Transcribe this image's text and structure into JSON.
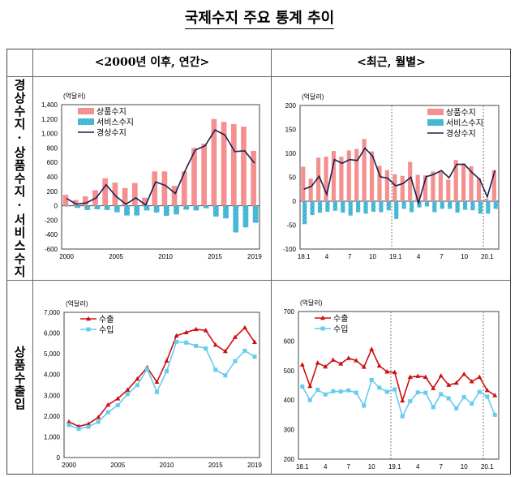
{
  "title": "국제수지 주요 통계 추이",
  "columns": [
    "<2000년 이후, 연간>",
    "<최근, 월별>"
  ],
  "rows": [
    "경상수지·상품수지·서비스수지",
    "상품수출입"
  ],
  "colors": {
    "goods": "#f4908f",
    "services": "#4fc3e0",
    "current": "#1a1f4e",
    "exports": "#cc1010",
    "imports": "#66ccee"
  },
  "chart_data": [
    {
      "type": "bar+line",
      "unit": "(억달러)",
      "categories": [
        "2000",
        "2001",
        "2002",
        "2003",
        "2004",
        "2005",
        "2006",
        "2007",
        "2008",
        "2009",
        "2010",
        "2011",
        "2012",
        "2013",
        "2014",
        "2015",
        "2016",
        "2017",
        "2018",
        "2019"
      ],
      "tick_labels": [
        "2000",
        "2005",
        "2010",
        "2015",
        "2019"
      ],
      "tick_index": [
        0,
        5,
        10,
        15,
        19
      ],
      "ylim": [
        -600,
        1400
      ],
      "yticks": [
        "1,400",
        "1,200",
        "1,000",
        "800",
        "600",
        "400",
        "200",
        "0",
        "-200",
        "-400",
        "-600"
      ],
      "legend": "top-left",
      "series": [
        {
          "name": "상품수지",
          "kind": "bar",
          "values": [
            150,
            80,
            130,
            215,
            380,
            320,
            245,
            315,
            110,
            475,
            475,
            275,
            475,
            800,
            860,
            1200,
            1160,
            1130,
            1095,
            760
          ]
        },
        {
          "name": "서비스수지",
          "kind": "hatched-bar",
          "values": [
            -10,
            -30,
            -60,
            -50,
            -60,
            -90,
            -135,
            -135,
            -65,
            -95,
            -140,
            -120,
            -55,
            -65,
            -35,
            -150,
            -175,
            -370,
            -300,
            -235
          ]
        },
        {
          "name": "경상수지",
          "kind": "line",
          "values": [
            100,
            20,
            40,
            110,
            290,
            130,
            20,
            110,
            10,
            330,
            280,
            170,
            490,
            770,
            830,
            1050,
            980,
            750,
            760,
            590
          ]
        }
      ]
    },
    {
      "type": "bar+line",
      "unit": "(억달러)",
      "categories": [
        "18.1",
        "18.2",
        "18.3",
        "18.4",
        "18.5",
        "18.6",
        "18.7",
        "18.8",
        "18.9",
        "18.10",
        "18.11",
        "18.12",
        "19.1",
        "19.2",
        "19.3",
        "19.4",
        "19.5",
        "19.6",
        "19.7",
        "19.8",
        "19.9",
        "19.10",
        "19.11",
        "19.12",
        "20.1",
        "20.2"
      ],
      "tick_labels": [
        "18.1",
        "4",
        "7",
        "10",
        "19.1",
        "4",
        "7",
        "10",
        "20.1"
      ],
      "tick_index": [
        0,
        3,
        6,
        9,
        12,
        15,
        18,
        21,
        24
      ],
      "year_dividers": [
        12,
        24
      ],
      "ylim": [
        -100,
        200
      ],
      "yticks": [
        "200",
        "150",
        "100",
        "50",
        "0",
        "-50",
        "-100"
      ],
      "legend": "top-right",
      "series": [
        {
          "name": "상품수지",
          "kind": "bar",
          "values": [
            72,
            47,
            91,
            93,
            105,
            93,
            106,
            109,
            130,
            104,
            74,
            65,
            56,
            53,
            82,
            55,
            54,
            62,
            61,
            45,
            86,
            79,
            73,
            48,
            5,
            65
          ]
        },
        {
          "name": "서비스수지",
          "kind": "hatched-bar",
          "values": [
            -48,
            -29,
            -24,
            -22,
            -20,
            -24,
            -30,
            -23,
            -26,
            -22,
            -23,
            -19,
            -37,
            -16,
            -23,
            -13,
            -11,
            -23,
            -16,
            -16,
            -24,
            -18,
            -19,
            -26,
            -26,
            -16
          ]
        },
        {
          "name": "경상수지",
          "kind": "line",
          "values": [
            25,
            31,
            52,
            14,
            87,
            79,
            87,
            85,
            111,
            94,
            51,
            48,
            32,
            37,
            50,
            -4,
            51,
            56,
            64,
            49,
            77,
            77,
            60,
            46,
            9,
            64
          ]
        }
      ]
    },
    {
      "type": "line",
      "unit": "(억달러)",
      "categories": [
        "2000",
        "2001",
        "2002",
        "2003",
        "2004",
        "2005",
        "2006",
        "2007",
        "2008",
        "2009",
        "2010",
        "2011",
        "2012",
        "2013",
        "2014",
        "2015",
        "2016",
        "2017",
        "2018",
        "2019"
      ],
      "tick_labels": [
        "2000",
        "2005",
        "2010",
        "2015",
        "2019"
      ],
      "tick_index": [
        0,
        5,
        10,
        15,
        19
      ],
      "ylim": [
        0,
        7000
      ],
      "yticks": [
        "7,000",
        "6,000",
        "5,000",
        "4,000",
        "3,000",
        "2,000",
        "1,000",
        "0"
      ],
      "legend": "top-left",
      "series": [
        {
          "name": "수출",
          "kind": "line-triangle",
          "values": [
            1720,
            1500,
            1620,
            1940,
            2540,
            2840,
            3260,
            3790,
            4340,
            3640,
            4660,
            5870,
            6030,
            6180,
            6130,
            5430,
            5120,
            5800,
            6260,
            5560
          ]
        },
        {
          "name": "수입",
          "kind": "line-square",
          "values": [
            1570,
            1380,
            1480,
            1720,
            2180,
            2520,
            3060,
            3490,
            4270,
            3160,
            4160,
            5580,
            5540,
            5380,
            5260,
            4230,
            3960,
            4650,
            5150,
            4860
          ]
        }
      ]
    },
    {
      "type": "line",
      "unit": "(억달러)",
      "categories": [
        "18.1",
        "18.2",
        "18.3",
        "18.4",
        "18.5",
        "18.6",
        "18.7",
        "18.8",
        "18.9",
        "18.10",
        "18.11",
        "18.12",
        "19.1",
        "19.2",
        "19.3",
        "19.4",
        "19.5",
        "19.6",
        "19.7",
        "19.8",
        "19.9",
        "19.10",
        "19.11",
        "19.12",
        "20.1",
        "20.2"
      ],
      "tick_labels": [
        "18.1",
        "4",
        "7",
        "10",
        "19.1",
        "4",
        "7",
        "10",
        "20.1"
      ],
      "tick_index": [
        0,
        3,
        6,
        9,
        12,
        15,
        18,
        21,
        24
      ],
      "year_dividers": [
        12,
        24
      ],
      "ylim": [
        200,
        700
      ],
      "yticks": [
        "700",
        "600",
        "500",
        "400",
        "300",
        "200"
      ],
      "legend": "top-left",
      "series": [
        {
          "name": "수출",
          "kind": "line-triangle",
          "values": [
            520,
            447,
            526,
            513,
            536,
            523,
            542,
            534,
            512,
            572,
            516,
            496,
            494,
            398,
            478,
            481,
            478,
            440,
            482,
            451,
            458,
            488,
            463,
            478,
            433,
            416
          ]
        },
        {
          "name": "수입",
          "kind": "line-square",
          "values": [
            446,
            400,
            435,
            419,
            430,
            429,
            433,
            425,
            381,
            468,
            442,
            428,
            436,
            345,
            396,
            426,
            425,
            376,
            420,
            406,
            372,
            410,
            388,
            428,
            412,
            350
          ]
        }
      ]
    }
  ]
}
